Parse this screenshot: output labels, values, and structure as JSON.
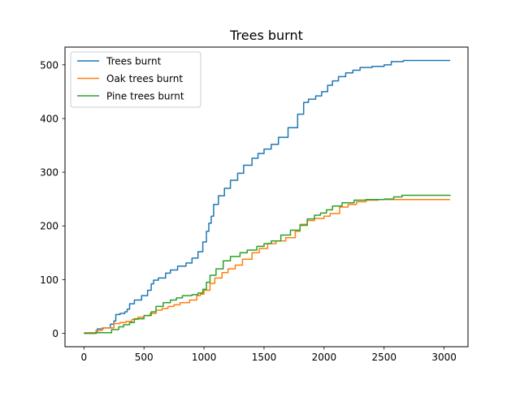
{
  "chart_data": {
    "type": "line",
    "title": "Trees burnt",
    "xlabel": "",
    "ylabel": "",
    "xlim": [
      -158,
      3199
    ],
    "ylim": [
      -25,
      533
    ],
    "x_ticks": [
      0,
      500,
      1000,
      1500,
      2000,
      2500,
      3000
    ],
    "y_ticks": [
      0,
      100,
      200,
      300,
      400,
      500
    ],
    "grid": false,
    "legend_position": "top-left",
    "series": [
      {
        "name": "Trees burnt",
        "color": "#1f77b4",
        "points": [
          [
            0,
            0
          ],
          [
            100,
            1
          ],
          [
            110,
            8
          ],
          [
            160,
            10
          ],
          [
            200,
            10
          ],
          [
            220,
            17
          ],
          [
            250,
            23
          ],
          [
            265,
            35
          ],
          [
            300,
            37
          ],
          [
            340,
            40
          ],
          [
            360,
            45
          ],
          [
            380,
            55
          ],
          [
            420,
            62
          ],
          [
            480,
            70
          ],
          [
            530,
            80
          ],
          [
            560,
            92
          ],
          [
            580,
            99
          ],
          [
            620,
            103
          ],
          [
            680,
            112
          ],
          [
            720,
            118
          ],
          [
            780,
            125
          ],
          [
            850,
            131
          ],
          [
            900,
            140
          ],
          [
            950,
            152
          ],
          [
            990,
            170
          ],
          [
            1020,
            190
          ],
          [
            1040,
            205
          ],
          [
            1060,
            218
          ],
          [
            1080,
            240
          ],
          [
            1120,
            256
          ],
          [
            1170,
            270
          ],
          [
            1220,
            285
          ],
          [
            1280,
            298
          ],
          [
            1330,
            313
          ],
          [
            1400,
            326
          ],
          [
            1450,
            335
          ],
          [
            1500,
            343
          ],
          [
            1560,
            352
          ],
          [
            1620,
            365
          ],
          [
            1700,
            383
          ],
          [
            1780,
            408
          ],
          [
            1830,
            430
          ],
          [
            1870,
            436
          ],
          [
            1930,
            442
          ],
          [
            1980,
            450
          ],
          [
            2030,
            462
          ],
          [
            2070,
            470
          ],
          [
            2120,
            478
          ],
          [
            2180,
            485
          ],
          [
            2240,
            490
          ],
          [
            2300,
            495
          ],
          [
            2400,
            497
          ],
          [
            2500,
            500
          ],
          [
            2560,
            506
          ],
          [
            2660,
            508
          ],
          [
            3050,
            508
          ]
        ]
      },
      {
        "name": "Oak trees burnt",
        "color": "#ff7f0e",
        "points": [
          [
            0,
            1
          ],
          [
            60,
            1
          ],
          [
            100,
            5
          ],
          [
            150,
            10
          ],
          [
            200,
            10
          ],
          [
            250,
            18
          ],
          [
            300,
            20
          ],
          [
            350,
            22
          ],
          [
            400,
            26
          ],
          [
            450,
            30
          ],
          [
            500,
            33
          ],
          [
            550,
            37
          ],
          [
            600,
            43
          ],
          [
            650,
            46
          ],
          [
            700,
            50
          ],
          [
            750,
            53
          ],
          [
            800,
            57
          ],
          [
            880,
            62
          ],
          [
            940,
            70
          ],
          [
            970,
            73
          ],
          [
            1000,
            80
          ],
          [
            1050,
            93
          ],
          [
            1090,
            103
          ],
          [
            1150,
            113
          ],
          [
            1200,
            120
          ],
          [
            1260,
            127
          ],
          [
            1320,
            138
          ],
          [
            1400,
            150
          ],
          [
            1460,
            158
          ],
          [
            1530,
            167
          ],
          [
            1600,
            172
          ],
          [
            1680,
            178
          ],
          [
            1760,
            190
          ],
          [
            1800,
            203
          ],
          [
            1860,
            210
          ],
          [
            1920,
            214
          ],
          [
            2000,
            218
          ],
          [
            2050,
            223
          ],
          [
            2130,
            235
          ],
          [
            2200,
            240
          ],
          [
            2270,
            245
          ],
          [
            2350,
            248
          ],
          [
            2450,
            249
          ],
          [
            3050,
            249
          ]
        ]
      },
      {
        "name": "Pine trees burnt",
        "color": "#2ca02c",
        "points": [
          [
            0,
            0
          ],
          [
            100,
            1
          ],
          [
            200,
            1
          ],
          [
            230,
            7
          ],
          [
            290,
            12
          ],
          [
            330,
            16
          ],
          [
            380,
            20
          ],
          [
            420,
            27
          ],
          [
            500,
            33
          ],
          [
            560,
            40
          ],
          [
            600,
            50
          ],
          [
            660,
            57
          ],
          [
            720,
            62
          ],
          [
            770,
            66
          ],
          [
            820,
            70
          ],
          [
            900,
            72
          ],
          [
            950,
            75
          ],
          [
            990,
            82
          ],
          [
            1020,
            95
          ],
          [
            1050,
            108
          ],
          [
            1100,
            120
          ],
          [
            1160,
            135
          ],
          [
            1220,
            143
          ],
          [
            1300,
            150
          ],
          [
            1360,
            155
          ],
          [
            1440,
            162
          ],
          [
            1500,
            167
          ],
          [
            1560,
            172
          ],
          [
            1640,
            183
          ],
          [
            1720,
            192
          ],
          [
            1800,
            201
          ],
          [
            1860,
            213
          ],
          [
            1920,
            220
          ],
          [
            1970,
            224
          ],
          [
            2020,
            230
          ],
          [
            2070,
            237
          ],
          [
            2150,
            243
          ],
          [
            2250,
            248
          ],
          [
            2350,
            249
          ],
          [
            2500,
            250
          ],
          [
            2580,
            254
          ],
          [
            2650,
            257
          ],
          [
            3050,
            258
          ]
        ]
      }
    ]
  }
}
